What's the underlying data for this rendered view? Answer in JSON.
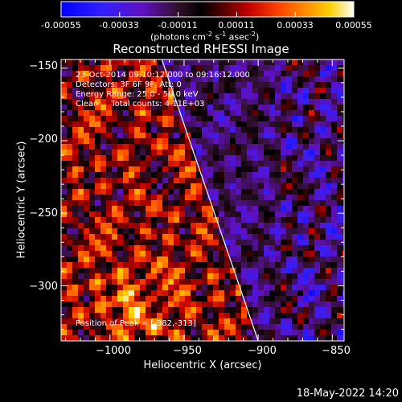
{
  "colorbar": {
    "ticks": [
      "-0.00055",
      "-0.00033",
      "-0.00011",
      "0.00011",
      "0.00033",
      "0.00055"
    ],
    "units_prefix": "(photons cm",
    "units_exp1": "-2",
    "units_mid1": " s",
    "units_exp2": "-1",
    "units_mid2": " asec",
    "units_exp3": "-2",
    "units_suffix": ")"
  },
  "chart_data": {
    "type": "heatmap",
    "title": "Reconstructed RHESSI Image",
    "xlabel": "Heliocentric X (arcsec)",
    "ylabel": "Heliocentric Y (arcsec)",
    "xlim": [
      -1033,
      -842
    ],
    "ylim": [
      -338,
      -144
    ],
    "xticks": [
      -1000,
      -950,
      -900,
      -850
    ],
    "yticks": [
      -150,
      -200,
      -250,
      -300
    ],
    "xtick_labels": [
      "−1000",
      "−950",
      "−900",
      "−850"
    ],
    "ytick_labels": [
      "−150",
      "−200",
      "−250",
      "−300"
    ],
    "color_range": [
      -0.00055,
      0.00055
    ],
    "colormap": "blue-purple-red-yellow-white",
    "limb_line": [
      [
        -965,
        -144
      ],
      [
        -900,
        -338
      ]
    ],
    "annotations": {
      "time": "23-Oct-2014 09:10:12.000 to 09:16:12.000",
      "detectors": "Detectors: 3F 6F 9F, Att: 0",
      "energy": "Energy Range: 25.0 - 50.0 keV",
      "clean": "Clean     Total counts: 4.11E+03",
      "peak": "Position of Peak = [-982,-313]"
    }
  },
  "footer": {
    "timestamp": "18-May-2022 14:20"
  }
}
